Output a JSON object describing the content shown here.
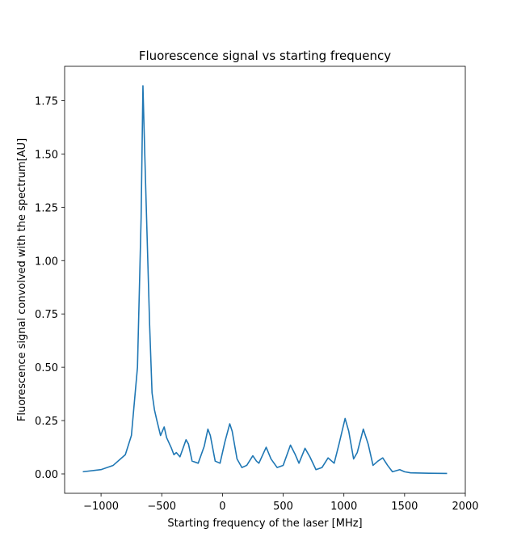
{
  "chart_data": {
    "type": "line",
    "title": "Fluorescence signal vs starting frequency",
    "x_label": "Starting frequency of the laser [MHz]",
    "y_label": "Fluorescence signal convolved with the spectrum[AU]",
    "x": [
      -1150,
      -1000,
      -900,
      -800,
      -750,
      -700,
      -670,
      -655,
      -640,
      -620,
      -600,
      -580,
      -560,
      -540,
      -510,
      -480,
      -460,
      -420,
      -400,
      -380,
      -350,
      -300,
      -280,
      -250,
      -200,
      -150,
      -120,
      -100,
      -60,
      -20,
      20,
      60,
      80,
      120,
      160,
      200,
      250,
      280,
      300,
      360,
      400,
      450,
      500,
      560,
      600,
      630,
      680,
      720,
      770,
      820,
      870,
      920,
      960,
      1010,
      1040,
      1080,
      1110,
      1160,
      1200,
      1240,
      1280,
      1320,
      1360,
      1400,
      1460,
      1500,
      1550,
      1700,
      1850
    ],
    "series": [
      {
        "color": "#1f77b4",
        "values": [
          0.01,
          0.02,
          0.04,
          0.09,
          0.18,
          0.5,
          1.2,
          1.82,
          1.5,
          1.1,
          0.7,
          0.38,
          0.3,
          0.25,
          0.18,
          0.22,
          0.17,
          0.12,
          0.09,
          0.1,
          0.08,
          0.16,
          0.14,
          0.06,
          0.05,
          0.13,
          0.21,
          0.18,
          0.06,
          0.05,
          0.15,
          0.235,
          0.2,
          0.07,
          0.03,
          0.04,
          0.085,
          0.06,
          0.05,
          0.125,
          0.07,
          0.03,
          0.04,
          0.135,
          0.09,
          0.05,
          0.12,
          0.08,
          0.02,
          0.03,
          0.075,
          0.05,
          0.14,
          0.26,
          0.2,
          0.07,
          0.1,
          0.21,
          0.14,
          0.04,
          0.06,
          0.075,
          0.04,
          0.01,
          0.02,
          0.01,
          0.005,
          0.003,
          0.002
        ]
      }
    ],
    "xlim": [
      -1300,
      2000
    ],
    "ylim": [
      -0.091,
      1.911
    ],
    "xticks": [
      {
        "value": -1000,
        "label": "−1000"
      },
      {
        "value": -500,
        "label": "−500"
      },
      0,
      500,
      1000,
      1500,
      2000
    ],
    "yticks": [
      {
        "value": 0,
        "label": "0.00"
      },
      {
        "value": 0.25,
        "label": "0.25"
      },
      {
        "value": 0.5,
        "label": "0.50"
      },
      {
        "value": 0.75,
        "label": "0.75"
      },
      {
        "value": 1,
        "label": "1.00"
      },
      {
        "value": 1.25,
        "label": "1.25"
      },
      {
        "value": 1.5,
        "label": "1.50"
      },
      {
        "value": 1.75,
        "label": "1.75"
      }
    ]
  }
}
